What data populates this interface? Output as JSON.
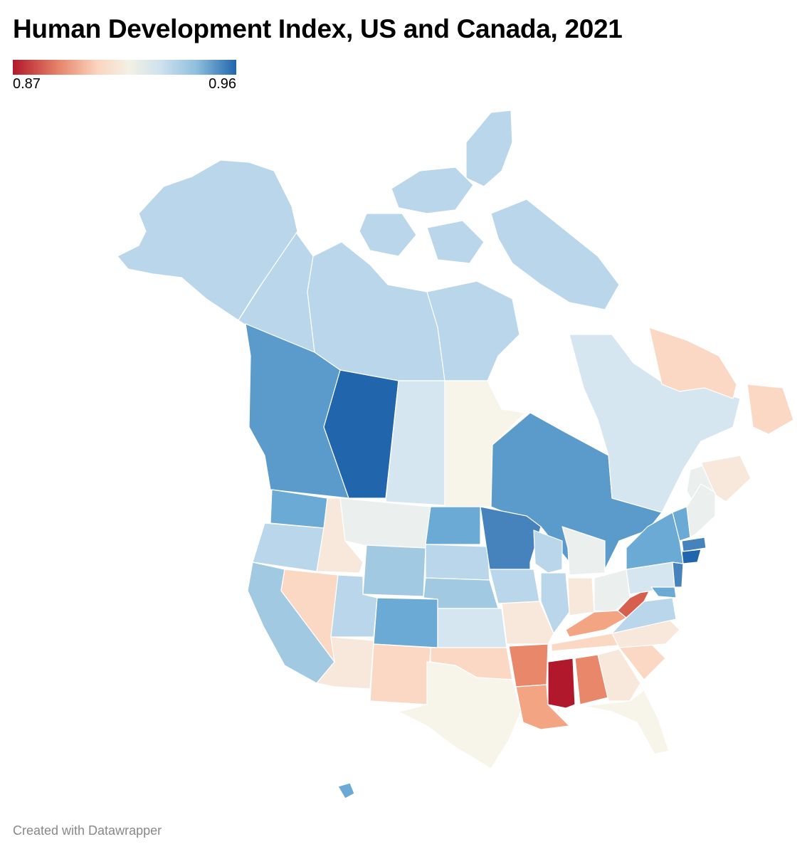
{
  "title": "Human Development Index, US and Canada, 2021",
  "legend": {
    "min_label": "0.87",
    "max_label": "0.96",
    "color_low": "#b2182b",
    "color_mid": "#f3f1e4",
    "color_high": "#2166ac"
  },
  "footer": "Created with Datawrapper",
  "colors": {
    "c1": "#b2182b",
    "c2": "#d6604d",
    "c3": "#e9876a",
    "c4": "#f3a483",
    "c5": "#fbd8c4",
    "c6": "#f8e8dc",
    "c7": "#f7f4e9",
    "c8": "#ebf0ee",
    "c9": "#d5e6f0",
    "c10": "#b9d6ea",
    "c11": "#a2c9e2",
    "c12": "#6baad4",
    "c13": "#5a9bcb",
    "c14": "#4682bb",
    "c15": "#2166ac"
  }
}
